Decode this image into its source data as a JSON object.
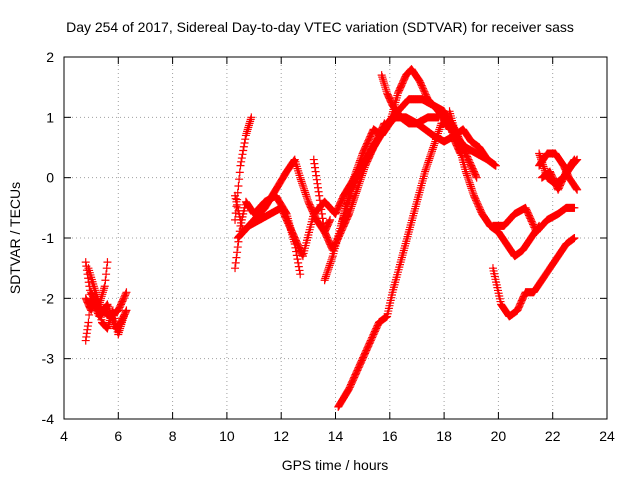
{
  "chart_data": {
    "type": "scatter",
    "title": "Day 254 of 2017, Sidereal Day-to-day VTEC variation (SDTVAR) for receiver sass",
    "xlabel": "GPS time / hours",
    "ylabel": "SDTVAR / TECUs",
    "xlim": [
      4,
      24
    ],
    "ylim": [
      -4,
      2
    ],
    "xticks": [
      4,
      6,
      8,
      10,
      12,
      14,
      16,
      18,
      20,
      22,
      24
    ],
    "yticks": [
      -4,
      -3,
      -2,
      -1,
      0,
      1,
      2
    ],
    "grid": true,
    "marker": "+",
    "color": "#ff0000",
    "series": [
      {
        "name": "t1",
        "x": [
          4.8,
          4.9,
          5.0,
          5.2,
          5.4,
          5.7,
          6.0,
          6.3
        ],
        "y": [
          -2.7,
          -2.4,
          -1.9,
          -2.1,
          -2.2,
          -2.3,
          -2.2,
          -1.9
        ]
      },
      {
        "name": "t2",
        "x": [
          4.8,
          5.0,
          5.3,
          5.6,
          5.9,
          6.1,
          6.3
        ],
        "y": [
          -1.4,
          -2.0,
          -2.3,
          -2.1,
          -2.5,
          -2.4,
          -2.2
        ]
      },
      {
        "name": "t3",
        "x": [
          4.9,
          5.1,
          5.3,
          5.5,
          5.6
        ],
        "y": [
          -1.5,
          -1.8,
          -2.1,
          -1.8,
          -1.4
        ]
      },
      {
        "name": "t4",
        "x": [
          4.8,
          5.0,
          5.2,
          5.4,
          5.6,
          5.8,
          6.0,
          6.2
        ],
        "y": [
          -2.0,
          -2.2,
          -2.0,
          -2.4,
          -2.5,
          -2.2,
          -2.6,
          -2.3
        ]
      },
      {
        "name": "t5",
        "x": [
          10.3,
          10.5,
          10.7,
          11.0,
          11.4,
          11.8,
          12.2,
          12.5,
          12.7
        ],
        "y": [
          -1.5,
          -0.8,
          -0.4,
          -0.6,
          -0.4,
          -0.3,
          -0.6,
          -1.1,
          -1.6
        ]
      },
      {
        "name": "t6",
        "x": [
          10.3,
          10.5,
          10.7,
          10.9
        ],
        "y": [
          -0.7,
          0.2,
          0.7,
          1.0
        ]
      },
      {
        "name": "t7",
        "x": [
          10.3,
          10.6,
          11.0,
          11.4,
          11.8,
          12.2,
          12.5,
          12.7,
          13.0,
          13.3,
          13.6,
          13.8
        ],
        "y": [
          -0.3,
          -0.9,
          -0.7,
          -0.5,
          -0.2,
          0.1,
          0.3,
          0.0,
          -0.4,
          -0.7,
          -0.9,
          -0.7
        ]
      },
      {
        "name": "t8",
        "x": [
          10.4,
          10.8,
          11.2,
          11.6,
          12.0,
          12.4,
          12.8,
          13.2,
          13.6,
          14.0
        ],
        "y": [
          -1.0,
          -0.8,
          -0.7,
          -0.6,
          -0.5,
          -0.9,
          -1.3,
          -0.6,
          -0.4,
          -0.6
        ]
      },
      {
        "name": "t9",
        "x": [
          13.2,
          13.4,
          13.6,
          13.9,
          14.2,
          14.5,
          14.8,
          15.1,
          15.4,
          15.6,
          15.8
        ],
        "y": [
          0.3,
          -0.3,
          -0.9,
          -1.2,
          -0.9,
          -0.6,
          -0.2,
          0.2,
          0.5,
          0.7,
          0.9
        ]
      },
      {
        "name": "t10",
        "x": [
          13.6,
          13.9,
          14.2,
          14.6,
          15.0,
          15.4,
          15.8,
          16.2,
          16.6,
          17.0,
          17.4,
          17.8
        ],
        "y": [
          -1.7,
          -1.3,
          -0.8,
          -0.2,
          0.2,
          0.5,
          0.8,
          1.0,
          1.0,
          0.9,
          1.0,
          1.0
        ]
      },
      {
        "name": "t11",
        "x": [
          14.2,
          14.6,
          15.0,
          15.4,
          15.7,
          16.0,
          16.3,
          16.6,
          16.8,
          17.1,
          17.4,
          17.8,
          18.2
        ],
        "y": [
          -0.8,
          -0.1,
          0.4,
          0.8,
          0.7,
          0.9,
          1.4,
          1.7,
          1.8,
          1.6,
          1.3,
          1.1,
          0.8
        ]
      },
      {
        "name": "t12",
        "x": [
          14.0,
          14.3,
          14.7,
          15.1,
          15.5,
          15.9,
          16.3,
          16.7,
          17.2,
          17.6,
          18.0,
          18.4,
          18.8,
          19.2,
          19.6,
          19.9
        ],
        "y": [
          -0.6,
          -0.3,
          0.0,
          0.3,
          0.6,
          0.9,
          1.1,
          1.3,
          1.3,
          1.2,
          1.0,
          0.7,
          0.5,
          0.4,
          0.3,
          0.2
        ]
      },
      {
        "name": "t13",
        "x": [
          15.7,
          15.9,
          16.1,
          16.4,
          16.7,
          17.0,
          17.3,
          17.6,
          18.0,
          18.4,
          18.7,
          19.0,
          19.3,
          19.6,
          19.9
        ],
        "y": [
          1.7,
          1.4,
          1.2,
          1.0,
          0.9,
          0.9,
          0.8,
          0.7,
          0.6,
          0.7,
          0.8,
          0.6,
          0.5,
          0.3,
          0.2
        ]
      },
      {
        "name": "t14",
        "x": [
          17.2,
          17.6,
          18.0,
          18.4,
          18.8,
          19.2
        ],
        "y": [
          1.3,
          1.2,
          1.1,
          0.8,
          0.4,
          0.0
        ]
      },
      {
        "name": "t15",
        "x": [
          14.1,
          14.5,
          14.9,
          15.3,
          15.6,
          15.9,
          16.1,
          16.4,
          16.7,
          17.0,
          17.3,
          17.6,
          17.9,
          18.2,
          18.4,
          18.6
        ],
        "y": [
          -3.8,
          -3.5,
          -3.1,
          -2.7,
          -2.4,
          -2.3,
          -1.9,
          -1.4,
          -0.9,
          -0.4,
          0.1,
          0.5,
          0.9,
          0.9,
          0.6,
          0.4
        ]
      },
      {
        "name": "t16",
        "x": [
          18.2,
          18.5,
          18.8,
          19.1,
          19.4,
          19.7
        ],
        "y": [
          1.1,
          0.6,
          0.1,
          -0.3,
          -0.6,
          -0.8
        ]
      },
      {
        "name": "t17",
        "x": [
          19.7,
          20.0,
          20.3,
          20.6,
          20.9,
          21.2,
          21.5
        ],
        "y": [
          -0.8,
          -0.9,
          -1.1,
          -1.3,
          -1.2,
          -1.0,
          -0.8
        ]
      },
      {
        "name": "t18",
        "x": [
          19.8,
          20.1,
          20.4,
          20.7,
          21.0,
          21.3,
          21.6,
          21.9,
          22.2,
          22.5,
          22.8
        ],
        "y": [
          -1.5,
          -2.1,
          -2.3,
          -2.2,
          -1.9,
          -1.9,
          -1.7,
          -1.5,
          -1.3,
          -1.1,
          -1.0
        ]
      },
      {
        "name": "t19",
        "x": [
          19.8,
          20.2,
          20.6,
          21.0,
          21.4,
          21.8,
          22.2,
          22.5,
          22.8
        ],
        "y": [
          -0.8,
          -0.8,
          -0.6,
          -0.5,
          -0.9,
          -0.7,
          -0.6,
          -0.5,
          -0.5
        ]
      },
      {
        "name": "t20",
        "x": [
          21.5,
          21.8,
          22.1,
          22.4,
          22.7,
          22.9
        ],
        "y": [
          0.4,
          0.0,
          -0.1,
          0.0,
          0.2,
          0.3
        ]
      },
      {
        "name": "t21",
        "x": [
          21.5,
          21.8,
          22.1,
          22.4,
          22.6,
          22.9
        ],
        "y": [
          0.2,
          0.4,
          0.4,
          0.2,
          0.0,
          -0.2
        ]
      },
      {
        "name": "t22",
        "x": [
          21.6,
          21.9,
          22.2,
          22.5,
          22.8
        ],
        "y": [
          0.0,
          0.1,
          -0.2,
          0.1,
          0.3
        ]
      }
    ]
  }
}
